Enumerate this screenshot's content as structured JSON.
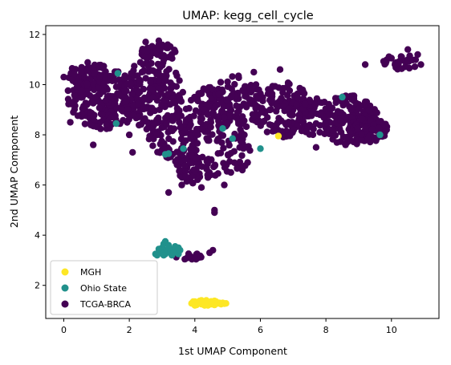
{
  "chart_data": {
    "type": "scatter",
    "title": "UMAP: kegg_cell_cycle",
    "xlabel": "1st UMAP Component",
    "ylabel": "2nd UMAP Component",
    "xlim": [
      -0.55,
      11.45
    ],
    "ylim": [
      0.68,
      12.35
    ],
    "xticks": [
      0,
      2,
      4,
      6,
      8,
      10
    ],
    "yticks": [
      2,
      4,
      6,
      8,
      10,
      12
    ],
    "grid": false,
    "legend_position": "lower-left",
    "series": [
      {
        "name": "MGH",
        "color": "#fde725",
        "points": [
          [
            3.9,
            1.28
          ],
          [
            4.0,
            1.35
          ],
          [
            4.05,
            1.22
          ],
          [
            4.1,
            1.3
          ],
          [
            4.15,
            1.38
          ],
          [
            4.2,
            1.25
          ],
          [
            4.25,
            1.32
          ],
          [
            4.3,
            1.2
          ],
          [
            4.35,
            1.4
          ],
          [
            4.4,
            1.28
          ],
          [
            4.45,
            1.33
          ],
          [
            4.5,
            1.25
          ],
          [
            4.55,
            1.3
          ],
          [
            4.6,
            1.22
          ],
          [
            4.65,
            1.35
          ],
          [
            4.7,
            1.28
          ],
          [
            4.75,
            1.3
          ],
          [
            4.8,
            1.25
          ],
          [
            4.85,
            1.3
          ],
          [
            4.9,
            1.27
          ],
          [
            4.95,
            1.28
          ],
          [
            4.0,
            1.2
          ],
          [
            4.2,
            1.4
          ],
          [
            4.4,
            1.2
          ],
          [
            4.6,
            1.38
          ],
          [
            3.95,
            1.35
          ],
          [
            4.3,
            1.3
          ],
          [
            4.5,
            1.36
          ],
          [
            6.55,
            7.95
          ]
        ]
      },
      {
        "name": "Ohio State",
        "color": "#21918c",
        "points": [
          [
            2.8,
            3.25
          ],
          [
            2.85,
            3.2
          ],
          [
            2.9,
            3.3
          ],
          [
            2.95,
            3.4
          ],
          [
            3.0,
            3.5
          ],
          [
            3.05,
            3.65
          ],
          [
            3.1,
            3.75
          ],
          [
            3.0,
            3.3
          ],
          [
            3.1,
            3.25
          ],
          [
            3.15,
            3.4
          ],
          [
            3.2,
            3.5
          ],
          [
            3.25,
            3.3
          ],
          [
            3.3,
            3.2
          ],
          [
            3.35,
            3.45
          ],
          [
            3.4,
            3.55
          ],
          [
            3.45,
            3.35
          ],
          [
            3.5,
            3.25
          ],
          [
            3.55,
            3.4
          ],
          [
            2.9,
            3.45
          ],
          [
            3.05,
            3.2
          ],
          [
            3.2,
            3.6
          ],
          [
            3.35,
            3.3
          ],
          [
            3.5,
            3.5
          ],
          [
            1.65,
            10.45
          ],
          [
            1.6,
            8.45
          ],
          [
            3.2,
            7.25
          ],
          [
            3.1,
            7.22
          ],
          [
            3.65,
            7.45
          ],
          [
            4.85,
            8.25
          ],
          [
            5.15,
            7.85
          ],
          [
            6.0,
            7.45
          ],
          [
            8.5,
            9.5
          ],
          [
            9.65,
            8.0
          ]
        ]
      },
      {
        "name": "TCGA-BRCA",
        "color": "#440154",
        "clusters": [
          {
            "cx": 1.3,
            "cy": 9.5,
            "rx": 1.2,
            "ry": 1.3,
            "n": 240,
            "seed": 11
          },
          {
            "cx": 0.7,
            "cy": 10.3,
            "rx": 0.6,
            "ry": 0.6,
            "n": 50,
            "seed": 12
          },
          {
            "cx": 2.7,
            "cy": 9.6,
            "rx": 1.0,
            "ry": 1.4,
            "n": 170,
            "seed": 13
          },
          {
            "cx": 2.9,
            "cy": 11.3,
            "rx": 0.7,
            "ry": 0.35,
            "n": 40,
            "seed": 14
          },
          {
            "cx": 3.4,
            "cy": 7.8,
            "rx": 0.8,
            "ry": 1.1,
            "n": 90,
            "seed": 15
          },
          {
            "cx": 4.1,
            "cy": 6.6,
            "rx": 0.65,
            "ry": 0.55,
            "n": 55,
            "seed": 16
          },
          {
            "cx": 4.4,
            "cy": 8.8,
            "rx": 0.7,
            "ry": 1.2,
            "n": 95,
            "seed": 17
          },
          {
            "cx": 5.3,
            "cy": 9.3,
            "rx": 0.8,
            "ry": 1.1,
            "n": 110,
            "seed": 18
          },
          {
            "cx": 5.2,
            "cy": 7.3,
            "rx": 0.5,
            "ry": 0.9,
            "n": 40,
            "seed": 19
          },
          {
            "cx": 6.7,
            "cy": 9.0,
            "rx": 0.9,
            "ry": 1.1,
            "n": 110,
            "seed": 20
          },
          {
            "cx": 7.5,
            "cy": 8.7,
            "rx": 0.7,
            "ry": 0.9,
            "n": 70,
            "seed": 21
          },
          {
            "cx": 8.7,
            "cy": 8.6,
            "rx": 0.9,
            "ry": 1.0,
            "n": 150,
            "seed": 22
          },
          {
            "cx": 9.3,
            "cy": 8.2,
            "rx": 0.6,
            "ry": 0.5,
            "n": 80,
            "seed": 23
          },
          {
            "cx": 10.3,
            "cy": 10.9,
            "rx": 0.55,
            "ry": 0.3,
            "n": 30,
            "seed": 24
          },
          {
            "cx": 3.8,
            "cy": 3.15,
            "rx": 0.45,
            "ry": 0.15,
            "n": 15,
            "seed": 25
          }
        ],
        "points": [
          [
            4.6,
            5.0
          ],
          [
            4.6,
            4.9
          ],
          [
            4.45,
            3.3
          ],
          [
            4.55,
            3.4
          ],
          [
            9.8,
            8.1
          ],
          [
            10.5,
            11.4
          ],
          [
            10.8,
            11.2
          ],
          [
            10.9,
            10.8
          ],
          [
            2.5,
            11.7
          ],
          [
            2.9,
            11.75
          ],
          [
            0.0,
            10.3
          ],
          [
            0.2,
            8.5
          ],
          [
            2.1,
            7.3
          ],
          [
            2.0,
            8.0
          ],
          [
            6.6,
            10.6
          ],
          [
            5.8,
            10.5
          ],
          [
            9.2,
            10.8
          ],
          [
            7.7,
            7.5
          ],
          [
            8.6,
            7.6
          ],
          [
            4.9,
            6.0
          ],
          [
            5.1,
            6.5
          ],
          [
            3.6,
            6.0
          ],
          [
            3.2,
            5.7
          ],
          [
            4.2,
            5.9
          ],
          [
            5.3,
            8.9
          ],
          [
            0.9,
            7.6
          ]
        ]
      }
    ]
  }
}
